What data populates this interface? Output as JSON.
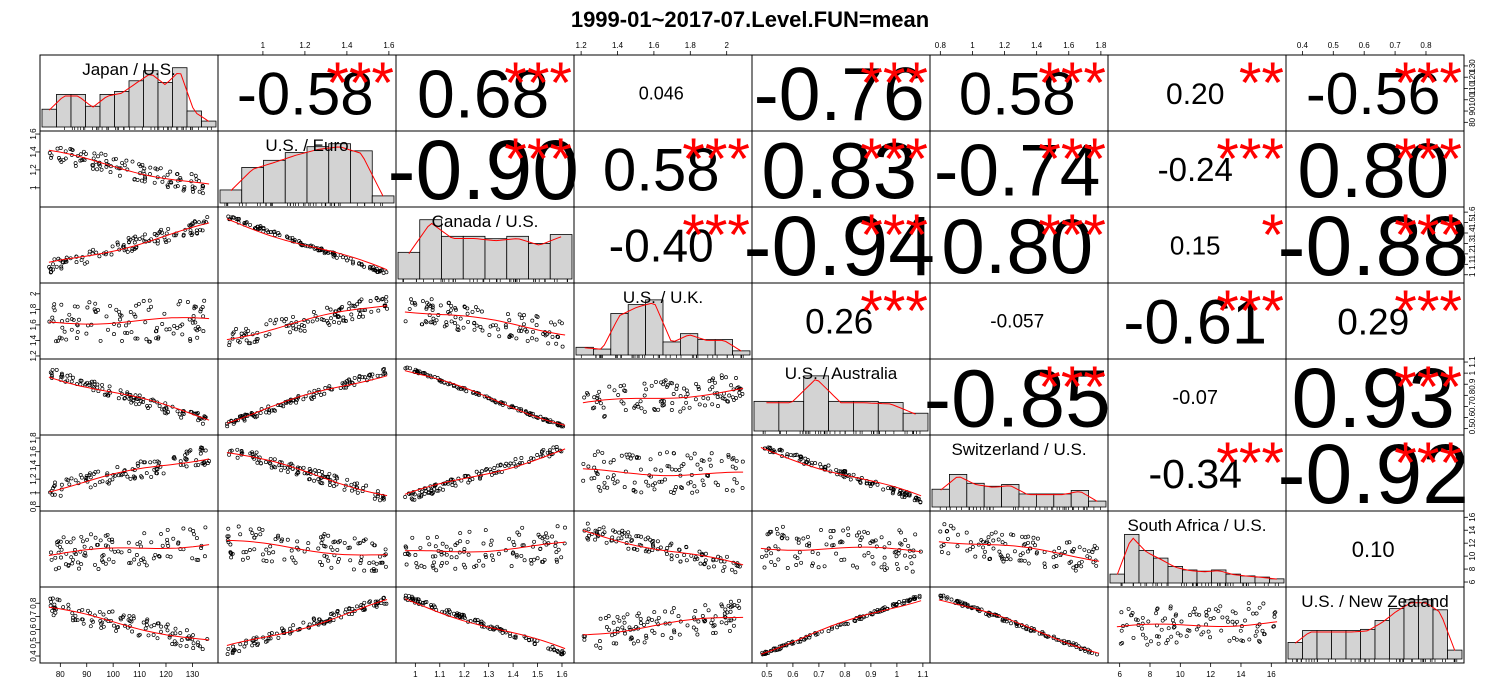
{
  "chart_data": {
    "type": "scatter-matrix",
    "title": "1999-01~2017-07.Level.FUN=mean",
    "variables": [
      {
        "name": "Japan / U.S.",
        "range": [
          75,
          137
        ],
        "ticks": [
          80,
          90,
          100,
          110,
          120,
          130
        ],
        "hist": [
          0.3,
          0.55,
          0.55,
          0.35,
          0.55,
          0.6,
          0.78,
          0.95,
          0.75,
          1.0,
          0.27,
          0.1
        ]
      },
      {
        "name": "U.S. / Euro",
        "range": [
          0.82,
          1.6
        ],
        "ticks": [
          1.0,
          1.2,
          1.4,
          1.6
        ],
        "hist": [
          0.22,
          0.6,
          0.72,
          0.85,
          0.95,
          1.0,
          0.88,
          0.12
        ]
      },
      {
        "name": "Canada / U.S.",
        "range": [
          0.95,
          1.62
        ],
        "ticks": [
          1.0,
          1.1,
          1.2,
          1.3,
          1.4,
          1.5,
          1.6
        ],
        "hist": [
          0.45,
          1.0,
          0.72,
          0.72,
          0.68,
          0.72,
          0.6,
          0.75
        ]
      },
      {
        "name": "U.S. / U.K.",
        "range": [
          1.2,
          2.1
        ],
        "ticks": [
          1.2,
          1.4,
          1.6,
          1.8,
          2.0
        ],
        "hist": [
          0.13,
          0.1,
          0.7,
          0.85,
          0.93,
          0.22,
          0.36,
          0.26,
          0.26,
          0.07
        ]
      },
      {
        "name": "U.S. / Australia",
        "range": [
          0.47,
          1.1
        ],
        "ticks": [
          0.5,
          0.6,
          0.7,
          0.8,
          0.9,
          1.0,
          1.1
        ],
        "hist": [
          0.5,
          0.5,
          0.93,
          0.5,
          0.5,
          0.48,
          0.3
        ]
      },
      {
        "name": "Switzerland / U.S.",
        "range": [
          0.78,
          1.8
        ],
        "ticks": [
          0.8,
          1.0,
          1.2,
          1.4,
          1.6,
          1.8
        ],
        "hist": [
          0.3,
          0.55,
          0.4,
          0.35,
          0.38,
          0.22,
          0.22,
          0.22,
          0.28,
          0.1
        ]
      },
      {
        "name": "South Africa / U.S.",
        "range": [
          5.7,
          16.5
        ],
        "ticks": [
          6,
          8,
          10,
          12,
          14,
          16
        ],
        "hist": [
          0.15,
          0.82,
          0.55,
          0.42,
          0.28,
          0.22,
          0.2,
          0.22,
          0.15,
          0.12,
          0.1,
          0.07
        ]
      },
      {
        "name": "U.S. / New Zealand",
        "range": [
          0.37,
          0.9
        ],
        "ticks": [
          0.4,
          0.5,
          0.6,
          0.7,
          0.8
        ],
        "hist": [
          0.28,
          0.48,
          0.48,
          0.48,
          0.48,
          0.5,
          0.65,
          0.85,
          1.0,
          1.0,
          0.83,
          0.15
        ]
      }
    ],
    "correlations": [
      {
        "row": 1,
        "col": 2,
        "value": "-0.58",
        "stars": "***"
      },
      {
        "row": 1,
        "col": 3,
        "value": "0.68",
        "stars": "***"
      },
      {
        "row": 1,
        "col": 4,
        "value": "0.046",
        "stars": ""
      },
      {
        "row": 1,
        "col": 5,
        "value": "-0.76",
        "stars": "***"
      },
      {
        "row": 1,
        "col": 6,
        "value": "0.58",
        "stars": "***"
      },
      {
        "row": 1,
        "col": 7,
        "value": "0.20",
        "stars": "**"
      },
      {
        "row": 1,
        "col": 8,
        "value": "-0.56",
        "stars": "***"
      },
      {
        "row": 2,
        "col": 3,
        "value": "-0.90",
        "stars": "***"
      },
      {
        "row": 2,
        "col": 4,
        "value": "0.58",
        "stars": "***"
      },
      {
        "row": 2,
        "col": 5,
        "value": "0.83",
        "stars": "***"
      },
      {
        "row": 2,
        "col": 6,
        "value": "-0.74",
        "stars": "***"
      },
      {
        "row": 2,
        "col": 7,
        "value": "-0.24",
        "stars": "***"
      },
      {
        "row": 2,
        "col": 8,
        "value": "0.80",
        "stars": "***"
      },
      {
        "row": 3,
        "col": 4,
        "value": "-0.40",
        "stars": "***"
      },
      {
        "row": 3,
        "col": 5,
        "value": "-0.94",
        "stars": "***"
      },
      {
        "row": 3,
        "col": 6,
        "value": "0.80",
        "stars": "***"
      },
      {
        "row": 3,
        "col": 7,
        "value": "0.15",
        "stars": "*"
      },
      {
        "row": 3,
        "col": 8,
        "value": "-0.88",
        "stars": "***"
      },
      {
        "row": 4,
        "col": 5,
        "value": "0.26",
        "stars": "***"
      },
      {
        "row": 4,
        "col": 6,
        "value": "-0.057",
        "stars": ""
      },
      {
        "row": 4,
        "col": 7,
        "value": "-0.61",
        "stars": "***"
      },
      {
        "row": 4,
        "col": 8,
        "value": "0.29",
        "stars": "***"
      },
      {
        "row": 5,
        "col": 6,
        "value": "-0.85",
        "stars": "***"
      },
      {
        "row": 5,
        "col": 7,
        "value": "-0.07",
        "stars": ""
      },
      {
        "row": 5,
        "col": 8,
        "value": "0.93",
        "stars": "***"
      },
      {
        "row": 6,
        "col": 7,
        "value": "-0.34",
        "stars": "***"
      },
      {
        "row": 6,
        "col": 8,
        "value": "-0.92",
        "stars": "***"
      },
      {
        "row": 7,
        "col": 8,
        "value": "0.10",
        "stars": ""
      }
    ],
    "colors": {
      "axis": "#000000",
      "hist_fill": "#d3d3d3",
      "smooth": "#ff0000",
      "stars": "#ff0000",
      "points": "#000000"
    }
  }
}
